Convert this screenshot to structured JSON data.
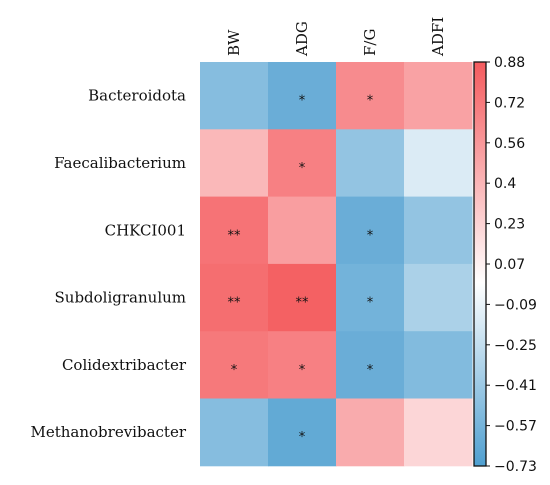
{
  "chart_data": {
    "type": "heatmap",
    "title": "",
    "columns": [
      "BW",
      "ADG",
      "F/G",
      "ADFI"
    ],
    "rows": [
      "Bacteroidota",
      "Faecalibacterium",
      "CHKCI001",
      "Subdoligranulum",
      "Colidextribacter",
      "Methanobrevibacter"
    ],
    "values": [
      [
        -0.5,
        -0.62,
        0.62,
        0.5
      ],
      [
        0.38,
        0.68,
        -0.45,
        -0.15
      ],
      [
        0.75,
        0.52,
        -0.62,
        -0.45
      ],
      [
        0.78,
        0.85,
        -0.58,
        -0.35
      ],
      [
        0.72,
        0.68,
        -0.62,
        -0.52
      ],
      [
        -0.5,
        -0.65,
        0.45,
        0.22
      ]
    ],
    "significance": [
      [
        "",
        "*",
        "*",
        ""
      ],
      [
        "",
        "*",
        "",
        ""
      ],
      [
        "**",
        "",
        "*",
        ""
      ],
      [
        "**",
        "**",
        "*",
        ""
      ],
      [
        "*",
        "*",
        "*",
        ""
      ],
      [
        "",
        "*",
        "",
        ""
      ]
    ],
    "colorbar": {
      "min": -0.73,
      "max": 0.88,
      "tick_labels": [
        "0.88",
        "0.72",
        "0.56",
        "0.4",
        "0.23",
        "0.07",
        "−0.09",
        "−0.25",
        "−0.41",
        "−0.57",
        "−0.73"
      ],
      "low_color": "#4f9fd0",
      "mid_color": "#ffffff",
      "high_color": "#f45b5e"
    }
  }
}
